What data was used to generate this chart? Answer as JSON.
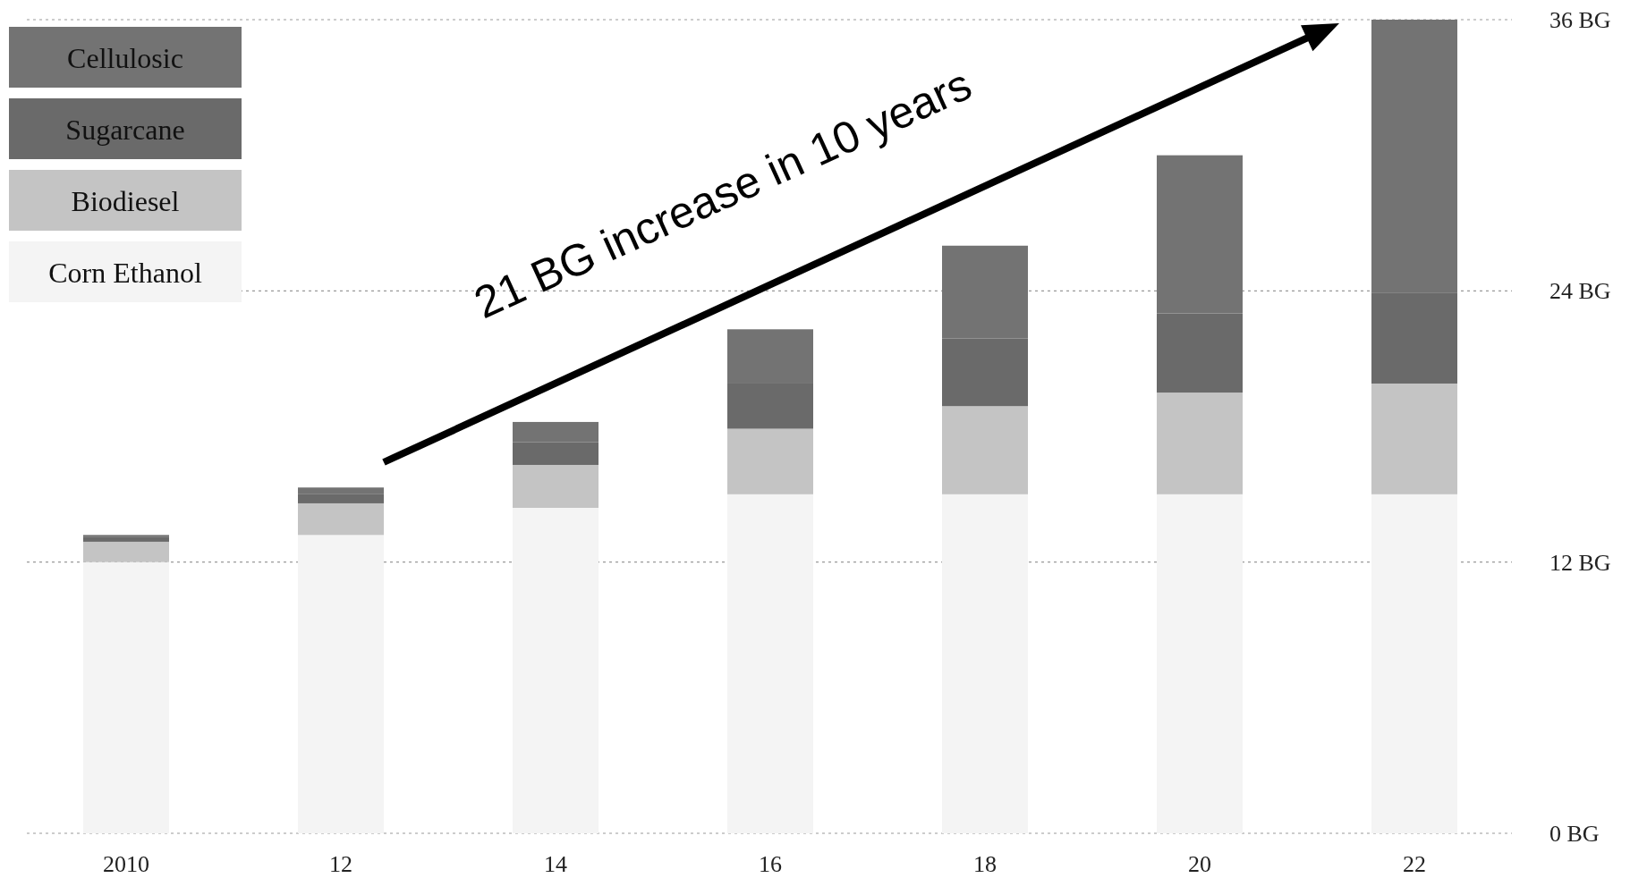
{
  "chart_data": {
    "type": "bar",
    "stacked": true,
    "categories": [
      "2010",
      "12",
      "14",
      "16",
      "18",
      "20",
      "22"
    ],
    "series": [
      {
        "name": "Corn Ethanol",
        "color": "#f4f4f4",
        "values": [
          12,
          13.2,
          14.4,
          15,
          15,
          15,
          15
        ]
      },
      {
        "name": "Biodiesel",
        "color": "#c4c4c4",
        "values": [
          0.9,
          1.4,
          1.9,
          2.9,
          3.9,
          4.5,
          4.9
        ]
      },
      {
        "name": "Sugarcane",
        "color": "#6a6a6a",
        "values": [
          0.2,
          0.4,
          1.0,
          2.0,
          3.0,
          3.5,
          4.0
        ]
      },
      {
        "name": "Cellulosic",
        "color": "#737373",
        "values": [
          0.1,
          0.3,
          0.9,
          2.4,
          4.1,
          7.0,
          12.1
        ]
      }
    ],
    "ylim": [
      0,
      36
    ],
    "yticks": [
      {
        "value": 0,
        "label": "0  BG"
      },
      {
        "value": 12,
        "label": "12  BG"
      },
      {
        "value": 24,
        "label": "24  BG"
      },
      {
        "value": 36,
        "label": "36  BG"
      }
    ],
    "grid": "y",
    "legend": "top left",
    "annotations": [
      "21 BG increase in 10 years"
    ]
  }
}
